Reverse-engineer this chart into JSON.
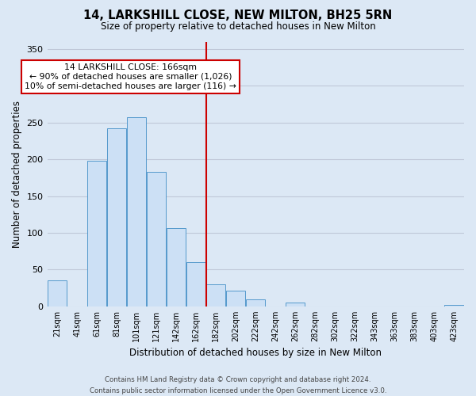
{
  "title": "14, LARKSHILL CLOSE, NEW MILTON, BH25 5RN",
  "subtitle": "Size of property relative to detached houses in New Milton",
  "xlabel": "Distribution of detached houses by size in New Milton",
  "ylabel": "Number of detached properties",
  "bar_labels": [
    "21sqm",
    "41sqm",
    "61sqm",
    "81sqm",
    "101sqm",
    "121sqm",
    "142sqm",
    "162sqm",
    "182sqm",
    "202sqm",
    "222sqm",
    "242sqm",
    "262sqm",
    "282sqm",
    "302sqm",
    "322sqm",
    "343sqm",
    "363sqm",
    "383sqm",
    "403sqm",
    "423sqm"
  ],
  "bar_values": [
    35,
    0,
    198,
    242,
    257,
    183,
    106,
    60,
    30,
    21,
    10,
    0,
    5,
    0,
    0,
    0,
    0,
    0,
    0,
    0,
    2
  ],
  "bar_color": "#cce0f5",
  "bar_edge_color": "#5599cc",
  "vline_x": 7.5,
  "vline_color": "#cc0000",
  "annotation_title": "14 LARKSHILL CLOSE: 166sqm",
  "annotation_line1": "← 90% of detached houses are smaller (1,026)",
  "annotation_line2": "10% of semi-detached houses are larger (116) →",
  "annotation_box_color": "#ffffff",
  "annotation_box_edge_color": "#cc0000",
  "ylim": [
    0,
    360
  ],
  "yticks": [
    0,
    50,
    100,
    150,
    200,
    250,
    300,
    350
  ],
  "background_color": "#dce8f5",
  "grid_color": "#c0c8d8",
  "footer_line1": "Contains HM Land Registry data © Crown copyright and database right 2024.",
  "footer_line2": "Contains public sector information licensed under the Open Government Licence v3.0."
}
